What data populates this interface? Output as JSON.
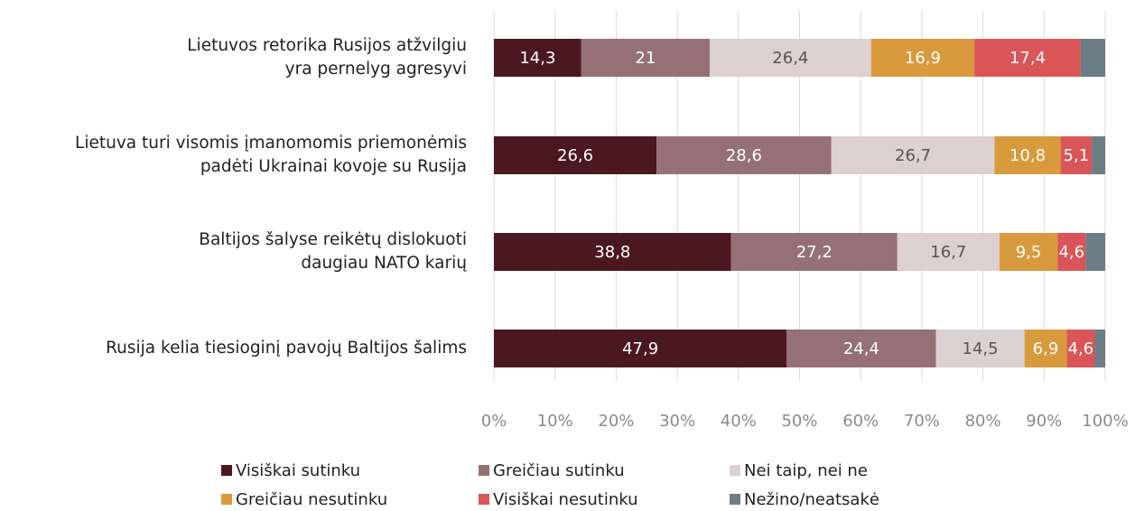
{
  "chart_data": {
    "type": "stacked_barh",
    "categories": [
      "Lietuvos retorika Rusijos atžvilgiu\nyra pernelyg agresyvi",
      "Lietuva turi visomis įmanomomis priemonėmis\npadėti Ukrainai kovoje su Rusija",
      "Baltijos šalyse reikėtų dislokuoti\ndaugiau NATO karių",
      "Rusija kelia tiesioginį pavojų Baltijos šalims"
    ],
    "series": [
      {
        "name": "Visiškai sutinku",
        "color": "#4b1820",
        "values": [
          14.3,
          26.6,
          38.8,
          47.9
        ],
        "value_labels": [
          "14,3",
          "26,6",
          "38,8",
          "47,9"
        ]
      },
      {
        "name": "Greičiau sutinku",
        "color": "#957176",
        "values": [
          21,
          28.6,
          27.2,
          24.4
        ],
        "value_labels": [
          "21",
          "28,6",
          "27,2",
          "24,4"
        ]
      },
      {
        "name": "Nei taip, nei ne",
        "color": "#ddd0d1",
        "values": [
          26.4,
          26.7,
          16.7,
          14.5
        ],
        "value_labels": [
          "26,4",
          "26,7",
          "16,7",
          "14,5"
        ]
      },
      {
        "name": "Greičiau nesutinku",
        "color": "#d99a3e",
        "values": [
          16.9,
          10.8,
          9.5,
          6.9
        ],
        "value_labels": [
          "16,9",
          "10,8",
          "9,5",
          "6,9"
        ]
      },
      {
        "name": "Visiškai nesutinku",
        "color": "#d95558",
        "values": [
          17.4,
          5.1,
          4.6,
          4.6
        ],
        "value_labels": [
          "17,4",
          "5,1",
          "4,6",
          "4,6"
        ]
      },
      {
        "name": "Nežino/neatsakė",
        "color": "#6b7d85",
        "values": [
          4.0,
          2.2,
          3.2,
          1.7
        ],
        "value_labels": [
          null,
          null,
          null,
          null
        ]
      }
    ],
    "xlim": [
      0,
      100
    ],
    "xticks": [
      {
        "value": 0,
        "label": "0%"
      },
      {
        "value": 10,
        "label": "10%"
      },
      {
        "value": 20,
        "label": "20%"
      },
      {
        "value": 30,
        "label": "30%"
      },
      {
        "value": 40,
        "label": "40%"
      },
      {
        "value": 50,
        "label": "50%"
      },
      {
        "value": 60,
        "label": "60%"
      },
      {
        "value": 70,
        "label": "70%"
      },
      {
        "value": 80,
        "label": "80%"
      },
      {
        "value": 90,
        "label": "90%"
      },
      {
        "value": 100,
        "label": "100%"
      }
    ],
    "grid": true,
    "legend": "bottom"
  }
}
